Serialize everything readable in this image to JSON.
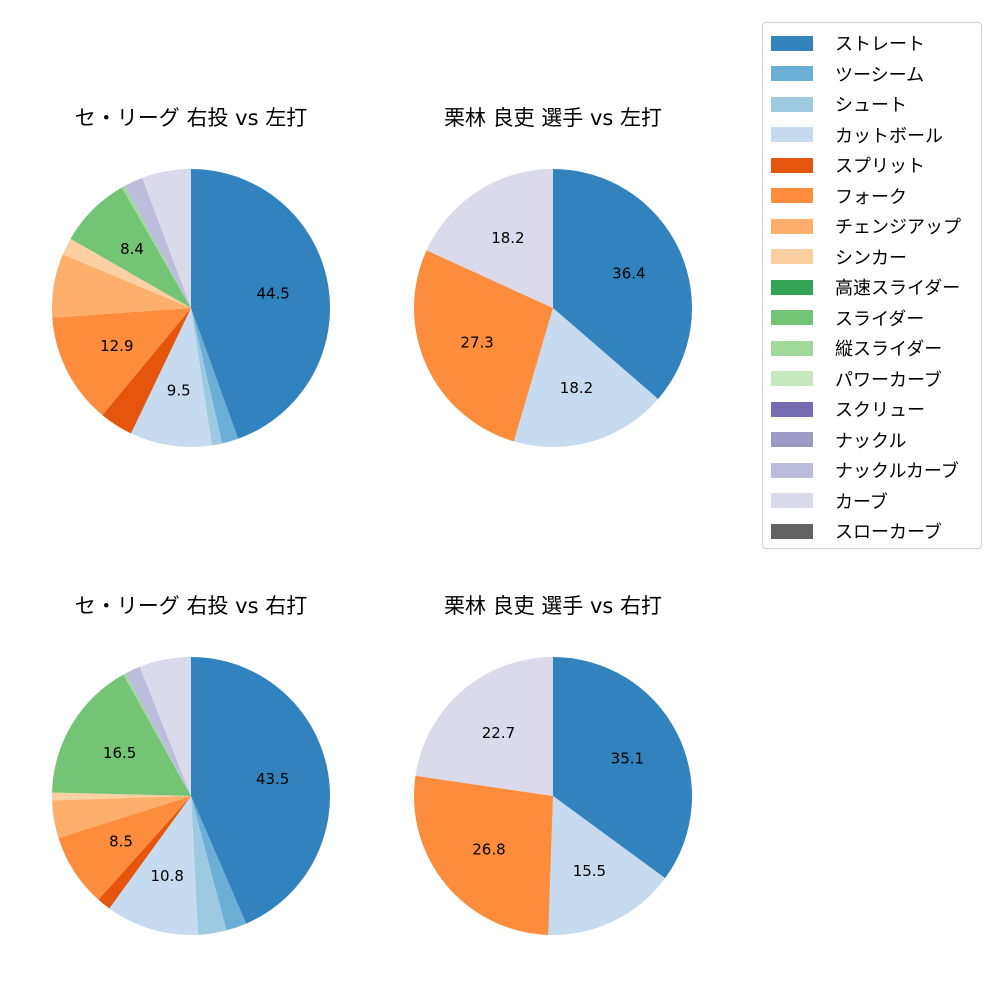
{
  "legend": {
    "items": [
      {
        "label": "ストレート",
        "color": "#3182bd"
      },
      {
        "label": "ツーシーム",
        "color": "#6baed6"
      },
      {
        "label": "シュート",
        "color": "#9ecae1"
      },
      {
        "label": "カットボール",
        "color": "#c6dbef"
      },
      {
        "label": "スプリット",
        "color": "#e6550d"
      },
      {
        "label": "フォーク",
        "color": "#fd8d3c"
      },
      {
        "label": "チェンジアップ",
        "color": "#fdae6b"
      },
      {
        "label": "シンカー",
        "color": "#fdd0a2"
      },
      {
        "label": "高速スライダー",
        "color": "#31a354"
      },
      {
        "label": "スライダー",
        "color": "#74c476"
      },
      {
        "label": "縦スライダー",
        "color": "#a1d99b"
      },
      {
        "label": "パワーカーブ",
        "color": "#c7e9c0"
      },
      {
        "label": "スクリュー",
        "color": "#756bb1"
      },
      {
        "label": "ナックル",
        "color": "#9e9ac8"
      },
      {
        "label": "ナックルカーブ",
        "color": "#bcbddc"
      },
      {
        "label": "カーブ",
        "color": "#dadaeb"
      },
      {
        "label": "スローカーブ",
        "color": "#636363"
      }
    ]
  },
  "chart_data": [
    {
      "type": "pie",
      "title": "セ・リーグ 右投 vs 左打",
      "start_angle": 90,
      "direction": "clockwise",
      "label_threshold": 8,
      "slices": [
        {
          "name": "ストレート",
          "value": 44.5,
          "label": "44.5"
        },
        {
          "name": "ツーシーム",
          "value": 1.9
        },
        {
          "name": "シュート",
          "value": 1.2
        },
        {
          "name": "カットボール",
          "value": 9.5,
          "label": "9.5"
        },
        {
          "name": "スプリット",
          "value": 3.9
        },
        {
          "name": "フォーク",
          "value": 12.9,
          "label": "12.9"
        },
        {
          "name": "チェンジアップ",
          "value": 7.4
        },
        {
          "name": "シンカー",
          "value": 2.0
        },
        {
          "name": "スライダー",
          "value": 8.4,
          "label": "8.4"
        },
        {
          "name": "縦スライダー",
          "value": 0.4
        },
        {
          "name": "ナックルカーブ",
          "value": 2.2
        },
        {
          "name": "カーブ",
          "value": 5.7
        }
      ]
    },
    {
      "type": "pie",
      "title": "栗林 良吏 選手 vs 左打",
      "start_angle": 90,
      "direction": "clockwise",
      "slices": [
        {
          "name": "ストレート",
          "value": 36.4,
          "label": "36.4"
        },
        {
          "name": "カットボール",
          "value": 18.2,
          "label": "18.2"
        },
        {
          "name": "フォーク",
          "value": 27.3,
          "label": "27.3"
        },
        {
          "name": "カーブ",
          "value": 18.2,
          "label": "18.2"
        }
      ]
    },
    {
      "type": "pie",
      "title": "セ・リーグ 右投 vs 右打",
      "start_angle": 90,
      "direction": "clockwise",
      "slices": [
        {
          "name": "ストレート",
          "value": 43.5,
          "label": "43.5"
        },
        {
          "name": "ツーシーム",
          "value": 2.4
        },
        {
          "name": "シュート",
          "value": 3.3
        },
        {
          "name": "カットボール",
          "value": 10.8,
          "label": "10.8"
        },
        {
          "name": "スプリット",
          "value": 1.6
        },
        {
          "name": "フォーク",
          "value": 8.5,
          "label": "8.5"
        },
        {
          "name": "チェンジアップ",
          "value": 4.4
        },
        {
          "name": "シンカー",
          "value": 0.9
        },
        {
          "name": "スライダー",
          "value": 16.5,
          "label": "16.5"
        },
        {
          "name": "縦スライダー",
          "value": 0.3
        },
        {
          "name": "ナックルカーブ",
          "value": 1.8
        },
        {
          "name": "カーブ",
          "value": 6.0
        }
      ]
    },
    {
      "type": "pie",
      "title": "栗林 良吏 選手 vs 右打",
      "start_angle": 90,
      "direction": "clockwise",
      "slices": [
        {
          "name": "ストレート",
          "value": 35.1,
          "label": "35.1"
        },
        {
          "name": "カットボール",
          "value": 15.5,
          "label": "15.5"
        },
        {
          "name": "フォーク",
          "value": 26.8,
          "label": "26.8"
        },
        {
          "name": "カーブ",
          "value": 22.7,
          "label": "22.7"
        }
      ]
    }
  ]
}
